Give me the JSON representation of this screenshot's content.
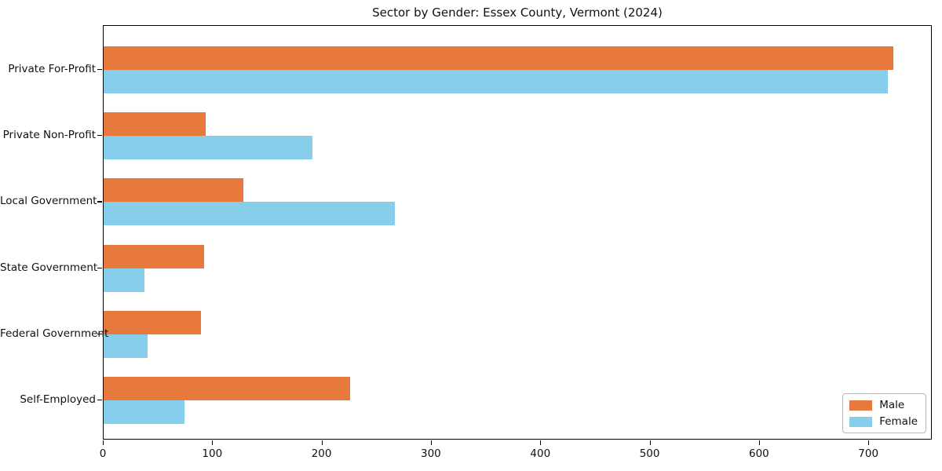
{
  "figure": {
    "background": "#ffffff",
    "axis_color": "#000000",
    "text_color": "#111111"
  },
  "chart_data": {
    "type": "bar",
    "orientation": "horizontal",
    "title": "Sector by Gender: Essex County, Vermont (2024)",
    "categories": [
      "Private For-Profit",
      "Private Non-Profit",
      "Local Government",
      "State Government",
      "Federal Government",
      "Self-Employed"
    ],
    "series": [
      {
        "name": "Male",
        "color": "#E8793C",
        "values": [
          722,
          93,
          128,
          92,
          89,
          225
        ]
      },
      {
        "name": "Female",
        "color": "#87CEEB",
        "values": [
          717,
          191,
          266,
          37,
          40,
          74
        ]
      }
    ],
    "xlabel": "",
    "ylabel": "",
    "xlim": [
      0,
      758
    ],
    "x_ticks": [
      0,
      100,
      200,
      300,
      400,
      500,
      600,
      700
    ],
    "grid": false,
    "legend_position": "lower right"
  }
}
